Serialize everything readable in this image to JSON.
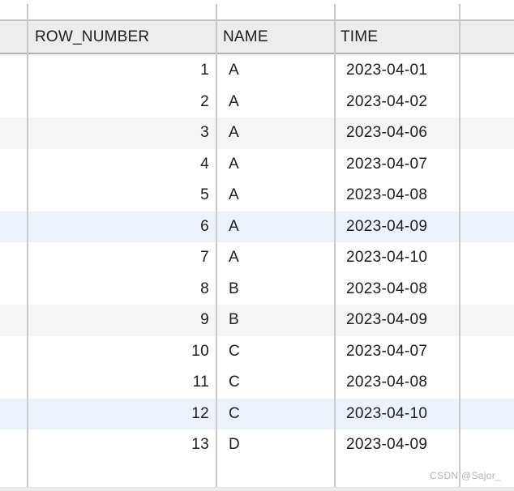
{
  "header": {
    "columns": [
      {
        "label": "ROW_NUMBER"
      },
      {
        "label": "NAME"
      },
      {
        "label": "TIME"
      }
    ]
  },
  "table": {
    "rows": [
      {
        "row_number": "1",
        "name": "A",
        "time": "2023-04-01",
        "stripe": "none"
      },
      {
        "row_number": "2",
        "name": "A",
        "time": "2023-04-02",
        "stripe": "none"
      },
      {
        "row_number": "3",
        "name": "A",
        "time": "2023-04-06",
        "stripe": "gray"
      },
      {
        "row_number": "4",
        "name": "A",
        "time": "2023-04-07",
        "stripe": "none"
      },
      {
        "row_number": "5",
        "name": "A",
        "time": "2023-04-08",
        "stripe": "none"
      },
      {
        "row_number": "6",
        "name": "A",
        "time": "2023-04-09",
        "stripe": "blue"
      },
      {
        "row_number": "7",
        "name": "A",
        "time": "2023-04-10",
        "stripe": "none"
      },
      {
        "row_number": "8",
        "name": "B",
        "time": "2023-04-08",
        "stripe": "none"
      },
      {
        "row_number": "9",
        "name": "B",
        "time": "2023-04-09",
        "stripe": "gray"
      },
      {
        "row_number": "10",
        "name": "C",
        "time": "2023-04-07",
        "stripe": "none"
      },
      {
        "row_number": "11",
        "name": "C",
        "time": "2023-04-08",
        "stripe": "none"
      },
      {
        "row_number": "12",
        "name": "C",
        "time": "2023-04-10",
        "stripe": "blue"
      },
      {
        "row_number": "13",
        "name": "D",
        "time": "2023-04-09",
        "stripe": "none"
      }
    ]
  },
  "watermark": "CSDN @Sajor_",
  "colors": {
    "header_bg": "#ededed",
    "stripes": {
      "gray": "#f5f5f6",
      "blue": "#ecf2fb"
    },
    "grid_line": "#dcdcdc",
    "text": "#1d1d1f"
  }
}
